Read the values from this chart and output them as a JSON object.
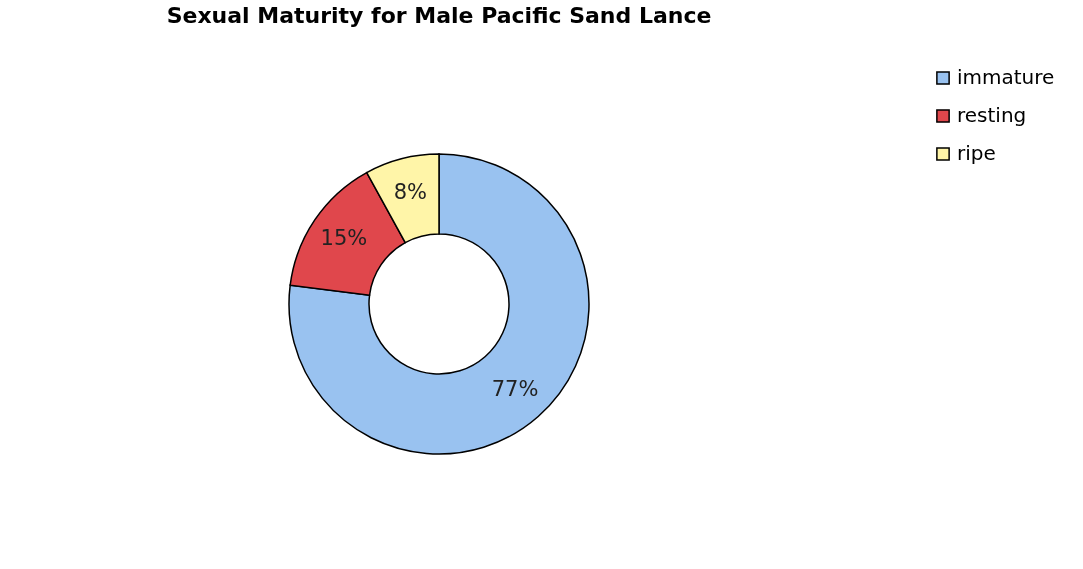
{
  "chart_data": {
    "type": "donut",
    "title": "Sexual Maturity for Male Pacific Sand Lance",
    "categories": [
      "immature",
      "resting",
      "ripe"
    ],
    "values": [
      77,
      15,
      8
    ],
    "colors": [
      "#99c2f0",
      "#e0474c",
      "#fff5a8"
    ],
    "value_labels": [
      "77%",
      "15%",
      "8%"
    ],
    "legend": "right"
  }
}
